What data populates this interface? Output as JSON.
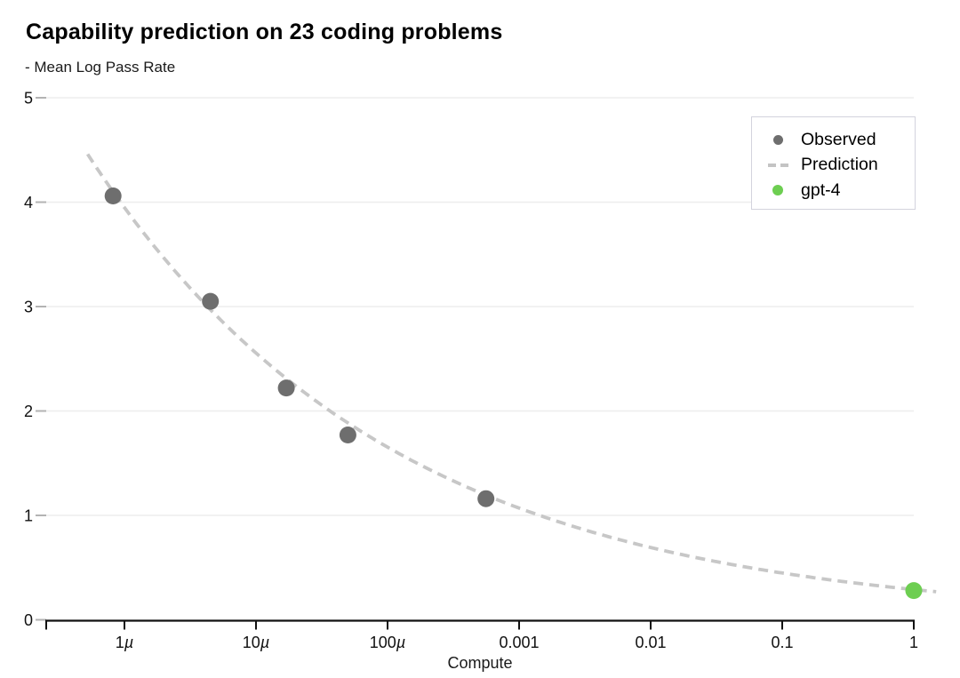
{
  "page_title": "Capability prediction on 23 coding problems",
  "chart_data": {
    "type": "scatter",
    "title": "Capability prediction on 23 coding problems",
    "ylabel": "- Mean Log Pass Rate",
    "xlabel": "Compute",
    "x_scale": "log",
    "xlim_log10": [
      -6.6,
      0.23
    ],
    "ylim": [
      0,
      5
    ],
    "grid": "horizontal",
    "x_ticks": [
      {
        "log10": -6,
        "label": "1µ"
      },
      {
        "log10": -5,
        "label": "10µ"
      },
      {
        "log10": -4,
        "label": "100µ"
      },
      {
        "log10": -3,
        "label": "0.001"
      },
      {
        "log10": -2,
        "label": "0.01"
      },
      {
        "log10": -1,
        "label": "0.1"
      },
      {
        "log10": 0,
        "label": "1"
      }
    ],
    "y_ticks": [
      {
        "value": 0,
        "label": "0"
      },
      {
        "value": 1,
        "label": "1"
      },
      {
        "value": 2,
        "label": "2"
      },
      {
        "value": 3,
        "label": "3"
      },
      {
        "value": 4,
        "label": "4"
      },
      {
        "value": 5,
        "label": "5"
      }
    ],
    "series": [
      {
        "name": "Observed",
        "kind": "scatter",
        "color": "#6e6e6e",
        "marker_radius": 9.5,
        "points": [
          {
            "x": 8.2e-07,
            "y": 4.06
          },
          {
            "x": 4.5e-06,
            "y": 3.05
          },
          {
            "x": 1.7e-05,
            "y": 2.22
          },
          {
            "x": 5e-05,
            "y": 1.77
          },
          {
            "x": 0.00056,
            "y": 1.16
          }
        ]
      },
      {
        "name": "Prediction",
        "kind": "dashed-line",
        "color": "#c7c7c7",
        "power_law": {
          "coefficient": 0.29,
          "exponent": -0.189,
          "formula": "y = 0.29 * compute^-0.189"
        },
        "x_range_log10": [
          -6.28,
          0.17
        ]
      },
      {
        "name": "gpt-4",
        "kind": "scatter",
        "color": "#6dce51",
        "marker_radius": 9.5,
        "points": [
          {
            "x": 1,
            "y": 0.28
          }
        ]
      }
    ],
    "legend": {
      "position": "top-right",
      "items": [
        {
          "label": "Observed",
          "marker": "dot",
          "color": "#6e6e6e"
        },
        {
          "label": "Prediction",
          "marker": "dashes",
          "color": "#c4c4c4"
        },
        {
          "label": "gpt-4",
          "marker": "dot",
          "color": "#6dce51"
        }
      ]
    },
    "colors": {
      "axis": "#111111",
      "gridline": "#ededed",
      "y_tick_dash": "#b3b3b3",
      "background": "#ffffff"
    }
  }
}
